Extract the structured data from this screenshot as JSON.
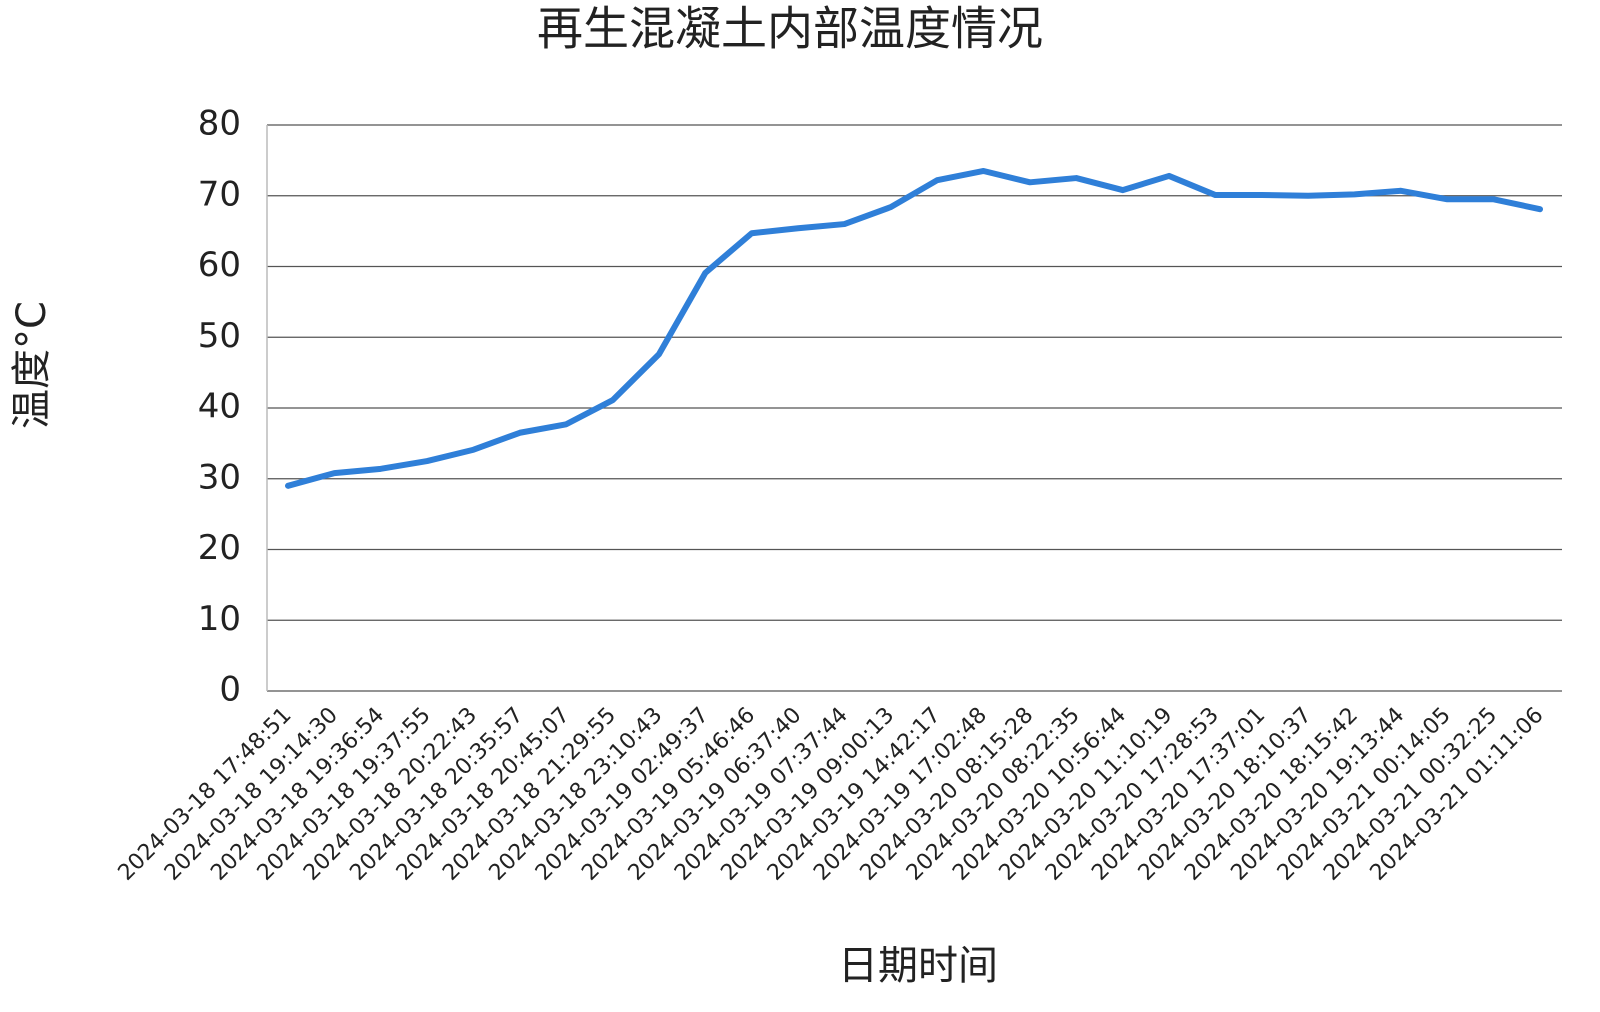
{
  "chart_data": {
    "type": "line",
    "title": "再生混凝土内部温度情况",
    "x_label": "日期时间",
    "y_label": "温度°C",
    "categories": [
      "2024-03-18 17:48:51",
      "2024-03-18 19:14:30",
      "2024-03-18 19:36:54",
      "2024-03-18 19:37:55",
      "2024-03-18 20:22:43",
      "2024-03-18 20:35:57",
      "2024-03-18 20:45:07",
      "2024-03-18 21:29:55",
      "2024-03-18 23:10:43",
      "2024-03-19 02:49:37",
      "2024-03-19 05:46:46",
      "2024-03-19 06:37:40",
      "2024-03-19 07:37:44",
      "2024-03-19 09:00:13",
      "2024-03-19 14:42:17",
      "2024-03-19 17:02:48",
      "2024-03-20 08:15:28",
      "2024-03-20 08:22:35",
      "2024-03-20 10:56:44",
      "2024-03-20 11:10:19",
      "2024-03-20 17:28:53",
      "2024-03-20 17:37:01",
      "2024-03-20 18:10:37",
      "2024-03-20 18:15:42",
      "2024-03-20 19:13:44",
      "2024-03-21 00:14:05",
      "2024-03-21 00:32:25",
      "2024-03-21 01:11:06"
    ],
    "values": [
      29,
      30.8,
      31.4,
      32.5,
      34.1,
      36.5,
      37.7,
      41.1,
      47.6,
      59.1,
      64.7,
      65.4,
      66,
      68.4,
      72.2,
      73.5,
      71.9,
      72.5,
      70.8,
      72.8,
      70.1,
      70.1,
      70,
      70.2,
      70.7,
      69.5,
      69.5,
      68.1
    ],
    "color": "#2f7fd8",
    "ylim": [
      0,
      80
    ],
    "yticks": [
      0,
      10,
      20,
      30,
      40,
      50,
      60,
      70,
      80
    ],
    "grid": true
  }
}
